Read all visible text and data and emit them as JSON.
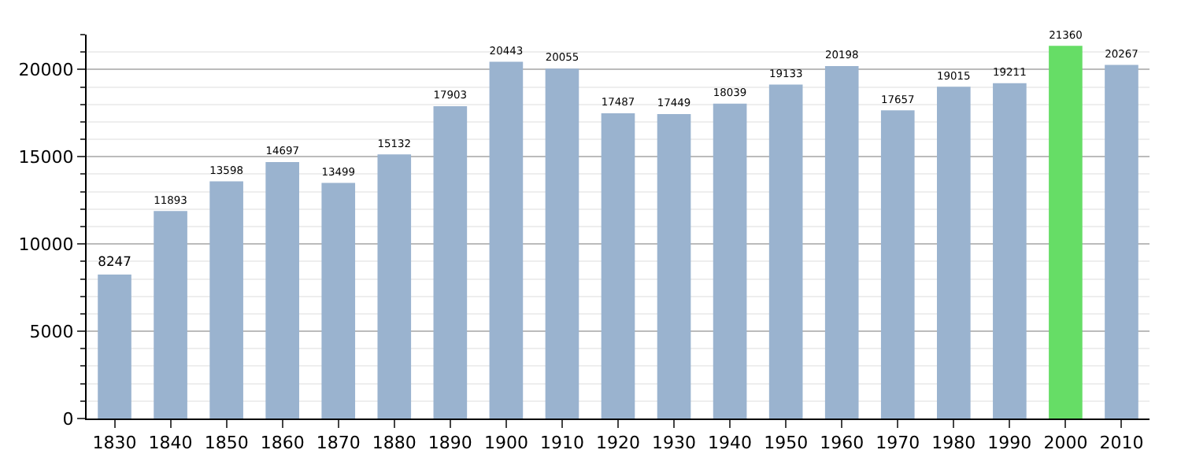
{
  "chart_data": {
    "type": "bar",
    "categories": [
      "1830",
      "1840",
      "1850",
      "1860",
      "1870",
      "1880",
      "1890",
      "1900",
      "1910",
      "1920",
      "1930",
      "1940",
      "1950",
      "1960",
      "1970",
      "1980",
      "1990",
      "2000",
      "2010"
    ],
    "values": [
      8247,
      11893,
      13598,
      14697,
      13499,
      15132,
      17903,
      20443,
      20055,
      17487,
      17449,
      18039,
      19133,
      20198,
      17657,
      19015,
      19211,
      21360,
      20267
    ],
    "colors": [
      "#9ab3cf",
      "#9ab3cf",
      "#9ab3cf",
      "#9ab3cf",
      "#9ab3cf",
      "#9ab3cf",
      "#9ab3cf",
      "#9ab3cf",
      "#9ab3cf",
      "#9ab3cf",
      "#9ab3cf",
      "#9ab3cf",
      "#9ab3cf",
      "#9ab3cf",
      "#9ab3cf",
      "#9ab3cf",
      "#9ab3cf",
      "#66dd66",
      "#9ab3cf"
    ],
    "ylim": [
      0,
      22000
    ],
    "yticks": [
      0,
      5000,
      10000,
      15000,
      20000
    ],
    "grid": "y",
    "data_labels": true
  }
}
